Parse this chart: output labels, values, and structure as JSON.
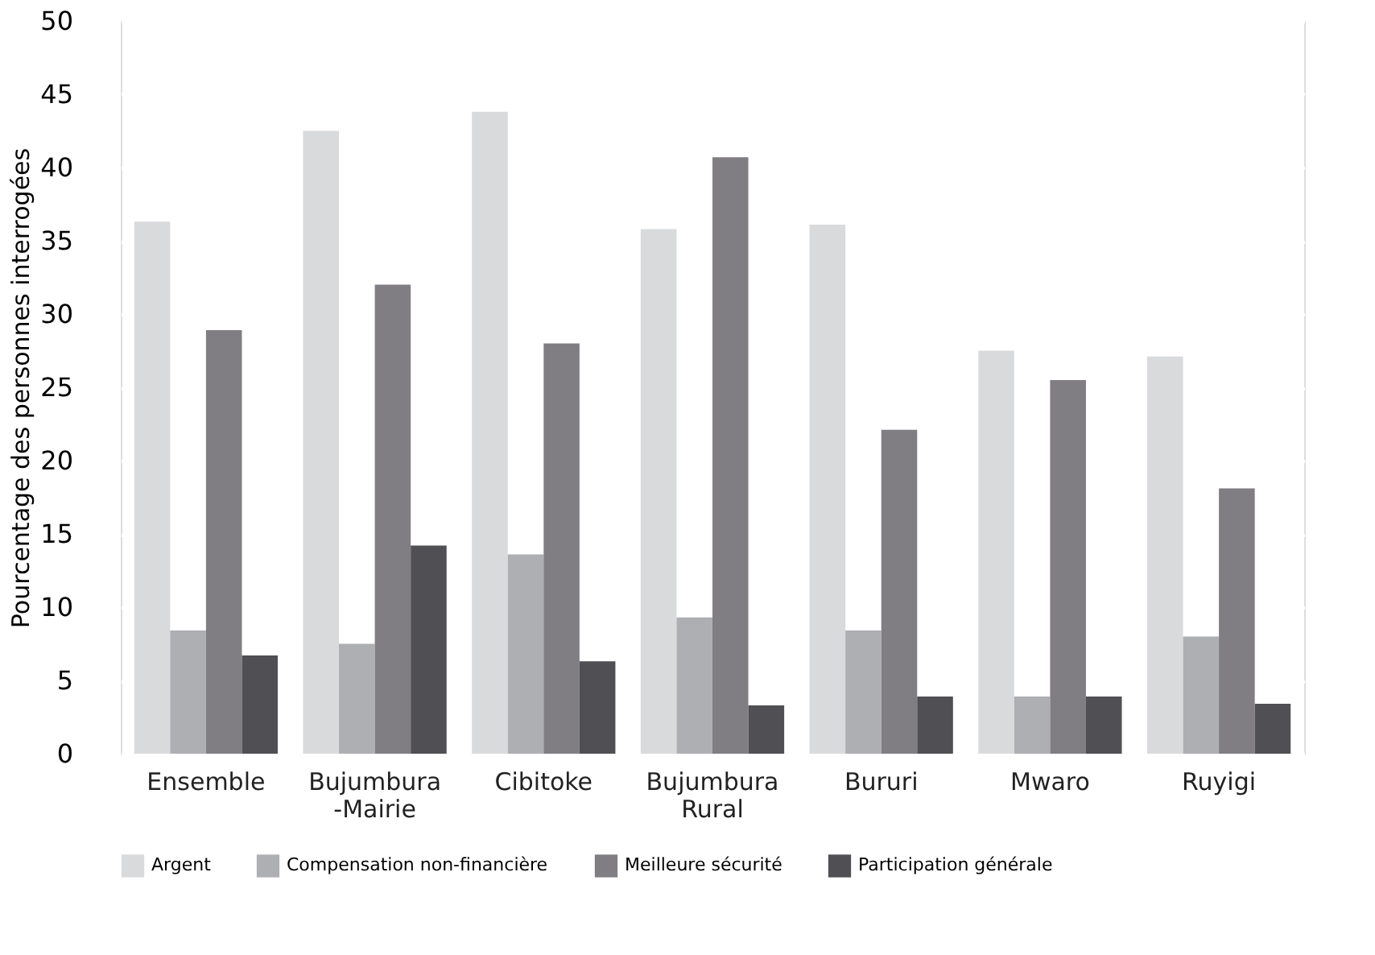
{
  "chart_data": {
    "type": "bar",
    "ylabel": "Pourcentage des personnes interrogées",
    "categories": [
      "Ensemble",
      "Bujumbura -Mairie",
      "Cibitoke",
      "Bujumbura Rural",
      "Bururi",
      "Mwaro",
      "Ruyigi"
    ],
    "series": [
      {
        "name": "Argent",
        "color": "#d9dadc",
        "values": [
          36.3,
          42.5,
          43.8,
          35.8,
          36.1,
          27.5,
          27.1
        ]
      },
      {
        "name": "Compensation non-financière",
        "color": "#aeafb2",
        "values": [
          8.4,
          7.5,
          13.6,
          9.3,
          8.4,
          3.9,
          8.0
        ]
      },
      {
        "name": "Meilleure sécurité",
        "color": "#807e83",
        "values": [
          28.9,
          32.0,
          28.0,
          40.7,
          22.1,
          25.5,
          18.1
        ]
      },
      {
        "name": "Participation générale",
        "color": "#504f54",
        "values": [
          6.7,
          14.2,
          6.3,
          3.3,
          3.9,
          3.9,
          3.4
        ]
      }
    ],
    "ylim": [
      0,
      50
    ],
    "yticks": [
      0,
      5,
      10,
      15,
      20,
      25,
      30,
      35,
      40,
      45,
      50
    ],
    "grid": "y",
    "legend": "bottom"
  }
}
